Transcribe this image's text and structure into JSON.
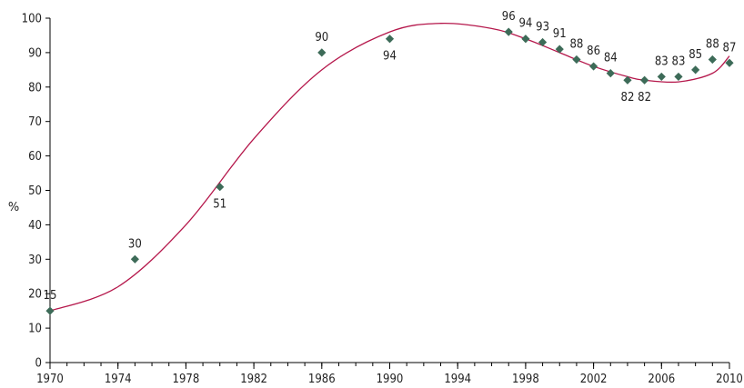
{
  "chart_data": {
    "type": "scatter",
    "title": "",
    "xlabel": "",
    "ylabel": "%",
    "xlim": [
      1970,
      2010
    ],
    "ylim": [
      0,
      100
    ],
    "x_ticks": [
      1970,
      1974,
      1978,
      1982,
      1986,
      1990,
      1994,
      1998,
      2002,
      2006,
      2010
    ],
    "y_ticks": [
      0,
      10,
      20,
      30,
      40,
      50,
      60,
      70,
      80,
      90,
      100
    ],
    "grid": false,
    "legend": "none",
    "series": [
      {
        "x": [
          1970,
          1975,
          1980,
          1986,
          1990,
          1997,
          1998,
          1999,
          2000,
          2001,
          2002,
          2003,
          2004,
          2005,
          2006,
          2007,
          2008,
          2009,
          2010
        ],
        "y": [
          15,
          30,
          51,
          90,
          94,
          96,
          94,
          93,
          91,
          88,
          86,
          84,
          82,
          82,
          83,
          83,
          85,
          88,
          87
        ],
        "color": "#3d6b58"
      }
    ],
    "trendline": {
      "color": "#b5174b",
      "points": [
        [
          1970,
          15
        ],
        [
          1974,
          22
        ],
        [
          1978,
          40
        ],
        [
          1982,
          65
        ],
        [
          1986,
          85
        ],
        [
          1990,
          96
        ],
        [
          1993,
          98.5
        ],
        [
          1996,
          97
        ],
        [
          1998,
          94
        ],
        [
          2000,
          90
        ],
        [
          2002,
          86
        ],
        [
          2004,
          83
        ],
        [
          2005,
          82
        ],
        [
          2007,
          81.5
        ],
        [
          2009,
          84
        ],
        [
          2010,
          89
        ]
      ]
    }
  }
}
